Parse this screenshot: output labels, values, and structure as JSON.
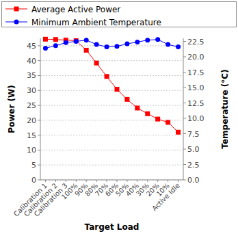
{
  "chart_data": {
    "type": "line",
    "x_label": "Target Load",
    "y_label": "Power (W)",
    "y2_label": "Temperature  (°C)",
    "categories": [
      "Calibration 1",
      "Calibration 2",
      "Calibration 3",
      "100%",
      "90%",
      "80%",
      "70%",
      "60%",
      "50%",
      "40%",
      "30%",
      "20%",
      "10%",
      "Active Idle"
    ],
    "series": [
      {
        "name": "Average Active Power",
        "color": "#ff0000",
        "marker": "square",
        "values": [
          47.2,
          47.1,
          46.9,
          46.7,
          43.5,
          39.2,
          34.7,
          30.4,
          27.0,
          24.1,
          22.2,
          20.4,
          19.3,
          16.0
        ]
      },
      {
        "name": "Minimum Ambient Temperature",
        "color": "#0000ff",
        "marker": "circle",
        "axis": "y2",
        "values": [
          21.4,
          21.8,
          22.3,
          22.5,
          22.7,
          22.0,
          21.6,
          21.7,
          22.1,
          22.4,
          22.7,
          22.8,
          22.0,
          21.6
        ]
      }
    ],
    "ylim": [
      0,
      47.5
    ],
    "yticks": [
      0,
      5,
      10,
      15,
      20,
      25,
      30,
      35,
      40,
      45
    ],
    "y2lim": [
      0,
      23
    ],
    "y2ticks": [
      {
        "value": 0,
        "label": "0.0"
      },
      2.5,
      {
        "value": 5,
        "label": "5.0"
      },
      7.5,
      {
        "value": 10,
        "label": "10.0"
      },
      12.5,
      {
        "value": 15,
        "label": "15.0"
      },
      17.5,
      {
        "value": 20,
        "label": "20.0"
      },
      22.5
    ],
    "grid": true,
    "legend": "top"
  }
}
